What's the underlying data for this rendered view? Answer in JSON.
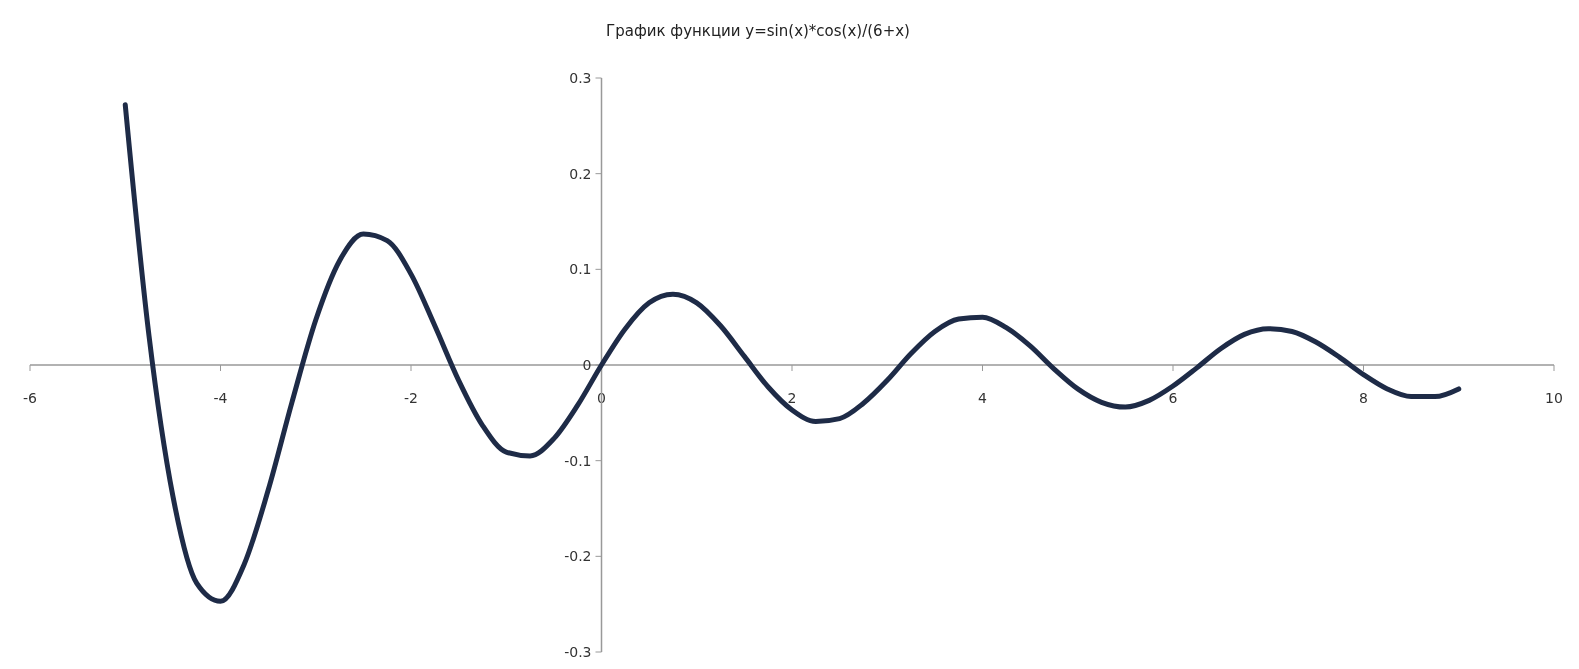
{
  "chart_data": {
    "type": "line",
    "title": "График функции y=sin(x)*cos(x)/(6+x)",
    "xlim": [
      -6,
      10
    ],
    "ylim": [
      -0.3,
      0.3
    ],
    "xticks": [
      -6,
      -4,
      -2,
      0,
      2,
      4,
      6,
      8,
      10
    ],
    "yticks": [
      -0.3,
      -0.2,
      -0.1,
      0,
      0.1,
      0.2,
      0.3
    ],
    "grid": false,
    "marker": "none",
    "line_style": "solid",
    "series": [
      {
        "color": "#1e2b47",
        "x": [
          -5,
          -4.75,
          -4.5,
          -4.25,
          -4,
          -3.75,
          -3.5,
          -3.25,
          -3,
          -2.75,
          -2.5,
          -2.25,
          -2,
          -1.75,
          -1.5,
          -1.25,
          -1,
          -0.75,
          -0.5,
          -0.25,
          0,
          0.25,
          0.5,
          0.75,
          1,
          1.25,
          1.5,
          1.75,
          2,
          2.25,
          2.5,
          2.75,
          3,
          3.25,
          3.5,
          3.75,
          4,
          4.25,
          4.5,
          4.75,
          5,
          5.25,
          5.5,
          5.75,
          6,
          6.25,
          6.5,
          6.75,
          7,
          7.25,
          7.5,
          7.75,
          8,
          8.25,
          8.5,
          8.75,
          9
        ],
        "values": [
          0.272,
          0.03,
          -0.137,
          -0.228,
          -0.247,
          -0.208,
          -0.131,
          -0.039,
          0.047,
          0.109,
          0.137,
          0.13,
          0.095,
          0.041,
          -0.016,
          -0.063,
          -0.091,
          -0.095,
          -0.077,
          -0.042,
          0,
          0.038,
          0.065,
          0.074,
          0.065,
          0.041,
          0.009,
          -0.023,
          -0.047,
          -0.059,
          -0.056,
          -0.04,
          -0.016,
          0.012,
          0.035,
          0.048,
          0.05,
          0.039,
          0.02,
          -0.004,
          -0.025,
          -0.039,
          -0.044,
          -0.037,
          -0.022,
          -0.003,
          0.017,
          0.032,
          0.038,
          0.035,
          0.024,
          0.008,
          -0.01,
          -0.025,
          -0.033,
          -0.033,
          -0.025
        ]
      }
    ]
  }
}
